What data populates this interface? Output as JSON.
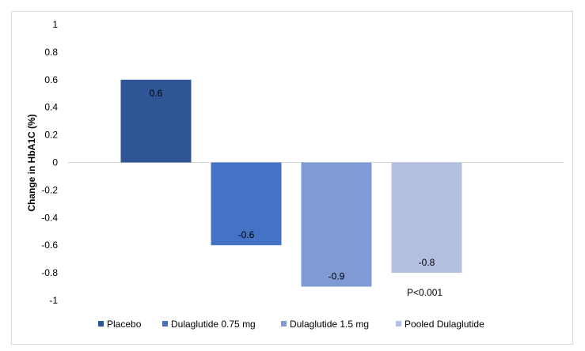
{
  "chart_data": {
    "type": "bar",
    "categories": [
      "Placebo",
      "Dulaglutide 0.75 mg",
      "Dulaglutide 1.5 mg",
      "Pooled Dulaglutide"
    ],
    "values": [
      0.6,
      -0.6,
      -0.9,
      -0.8
    ],
    "data_labels": [
      "0.6",
      "-0.6",
      "-0.9",
      "-0.8"
    ],
    "colors": [
      "#2f5597",
      "#4472c4",
      "#7f9ad4",
      "#b4c0e0"
    ],
    "ylabel": "Change in HbA1C (%)",
    "ylim": [
      -1,
      1
    ],
    "yticks": [
      1,
      0.8,
      0.6,
      0.4,
      0.2,
      0,
      -0.2,
      -0.4,
      -0.6,
      -0.8,
      -1
    ],
    "ytick_labels": [
      "1",
      "0.8",
      "0.6",
      "0.4",
      "0.2",
      "0",
      "-0.2",
      "-0.4",
      "-0.6",
      "-0.8",
      "-1"
    ],
    "annotation": "P<0.001",
    "grid": false,
    "legend": {
      "position": "bottom",
      "entries": [
        "Placebo",
        "Dulaglutide 0.75 mg",
        "Dulaglutide 1.5 mg",
        "Pooled Dulaglutide"
      ]
    }
  }
}
